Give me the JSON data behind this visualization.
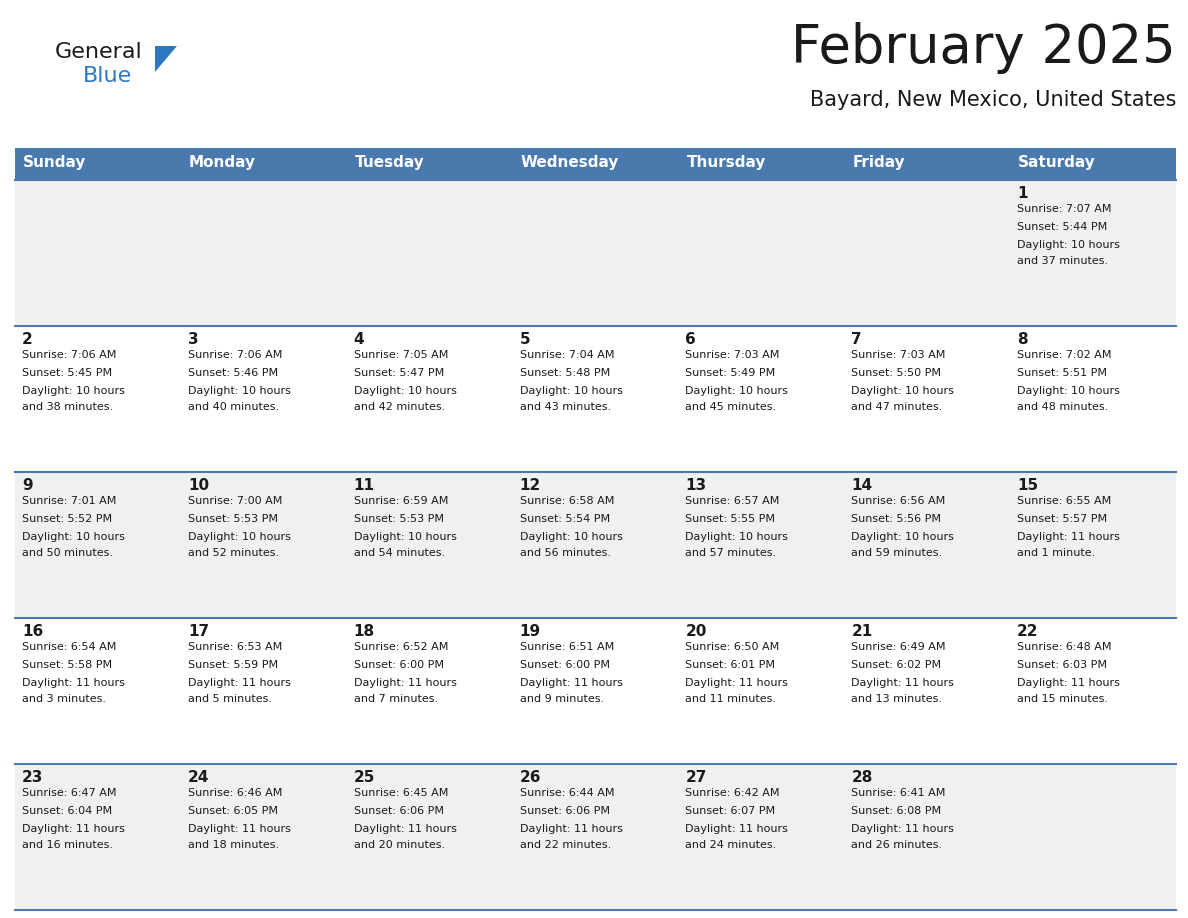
{
  "title": "February 2025",
  "subtitle": "Bayard, New Mexico, United States",
  "header_bg": "#4a7aad",
  "header_text_color": "#FFFFFF",
  "day_names": [
    "Sunday",
    "Monday",
    "Tuesday",
    "Wednesday",
    "Thursday",
    "Friday",
    "Saturday"
  ],
  "row_bg_odd": "#F0F0F0",
  "row_bg_even": "#FFFFFF",
  "cell_border_color": "#4a7aad",
  "title_color": "#1a1a1a",
  "subtitle_color": "#1a1a1a",
  "day_num_color": "#1a1a1a",
  "info_color": "#1a1a1a",
  "logo_general_color": "#1a1a1a",
  "logo_blue_color": "#2E78C0",
  "calendar_data": [
    [
      null,
      null,
      null,
      null,
      null,
      null,
      {
        "day": 1,
        "sunrise": "7:07 AM",
        "sunset": "5:44 PM",
        "daylight_line1": "Daylight: 10 hours",
        "daylight_line2": "and 37 minutes."
      }
    ],
    [
      {
        "day": 2,
        "sunrise": "7:06 AM",
        "sunset": "5:45 PM",
        "daylight_line1": "Daylight: 10 hours",
        "daylight_line2": "and 38 minutes."
      },
      {
        "day": 3,
        "sunrise": "7:06 AM",
        "sunset": "5:46 PM",
        "daylight_line1": "Daylight: 10 hours",
        "daylight_line2": "and 40 minutes."
      },
      {
        "day": 4,
        "sunrise": "7:05 AM",
        "sunset": "5:47 PM",
        "daylight_line1": "Daylight: 10 hours",
        "daylight_line2": "and 42 minutes."
      },
      {
        "day": 5,
        "sunrise": "7:04 AM",
        "sunset": "5:48 PM",
        "daylight_line1": "Daylight: 10 hours",
        "daylight_line2": "and 43 minutes."
      },
      {
        "day": 6,
        "sunrise": "7:03 AM",
        "sunset": "5:49 PM",
        "daylight_line1": "Daylight: 10 hours",
        "daylight_line2": "and 45 minutes."
      },
      {
        "day": 7,
        "sunrise": "7:03 AM",
        "sunset": "5:50 PM",
        "daylight_line1": "Daylight: 10 hours",
        "daylight_line2": "and 47 minutes."
      },
      {
        "day": 8,
        "sunrise": "7:02 AM",
        "sunset": "5:51 PM",
        "daylight_line1": "Daylight: 10 hours",
        "daylight_line2": "and 48 minutes."
      }
    ],
    [
      {
        "day": 9,
        "sunrise": "7:01 AM",
        "sunset": "5:52 PM",
        "daylight_line1": "Daylight: 10 hours",
        "daylight_line2": "and 50 minutes."
      },
      {
        "day": 10,
        "sunrise": "7:00 AM",
        "sunset": "5:53 PM",
        "daylight_line1": "Daylight: 10 hours",
        "daylight_line2": "and 52 minutes."
      },
      {
        "day": 11,
        "sunrise": "6:59 AM",
        "sunset": "5:53 PM",
        "daylight_line1": "Daylight: 10 hours",
        "daylight_line2": "and 54 minutes."
      },
      {
        "day": 12,
        "sunrise": "6:58 AM",
        "sunset": "5:54 PM",
        "daylight_line1": "Daylight: 10 hours",
        "daylight_line2": "and 56 minutes."
      },
      {
        "day": 13,
        "sunrise": "6:57 AM",
        "sunset": "5:55 PM",
        "daylight_line1": "Daylight: 10 hours",
        "daylight_line2": "and 57 minutes."
      },
      {
        "day": 14,
        "sunrise": "6:56 AM",
        "sunset": "5:56 PM",
        "daylight_line1": "Daylight: 10 hours",
        "daylight_line2": "and 59 minutes."
      },
      {
        "day": 15,
        "sunrise": "6:55 AM",
        "sunset": "5:57 PM",
        "daylight_line1": "Daylight: 11 hours",
        "daylight_line2": "and 1 minute."
      }
    ],
    [
      {
        "day": 16,
        "sunrise": "6:54 AM",
        "sunset": "5:58 PM",
        "daylight_line1": "Daylight: 11 hours",
        "daylight_line2": "and 3 minutes."
      },
      {
        "day": 17,
        "sunrise": "6:53 AM",
        "sunset": "5:59 PM",
        "daylight_line1": "Daylight: 11 hours",
        "daylight_line2": "and 5 minutes."
      },
      {
        "day": 18,
        "sunrise": "6:52 AM",
        "sunset": "6:00 PM",
        "daylight_line1": "Daylight: 11 hours",
        "daylight_line2": "and 7 minutes."
      },
      {
        "day": 19,
        "sunrise": "6:51 AM",
        "sunset": "6:00 PM",
        "daylight_line1": "Daylight: 11 hours",
        "daylight_line2": "and 9 minutes."
      },
      {
        "day": 20,
        "sunrise": "6:50 AM",
        "sunset": "6:01 PM",
        "daylight_line1": "Daylight: 11 hours",
        "daylight_line2": "and 11 minutes."
      },
      {
        "day": 21,
        "sunrise": "6:49 AM",
        "sunset": "6:02 PM",
        "daylight_line1": "Daylight: 11 hours",
        "daylight_line2": "and 13 minutes."
      },
      {
        "day": 22,
        "sunrise": "6:48 AM",
        "sunset": "6:03 PM",
        "daylight_line1": "Daylight: 11 hours",
        "daylight_line2": "and 15 minutes."
      }
    ],
    [
      {
        "day": 23,
        "sunrise": "6:47 AM",
        "sunset": "6:04 PM",
        "daylight_line1": "Daylight: 11 hours",
        "daylight_line2": "and 16 minutes."
      },
      {
        "day": 24,
        "sunrise": "6:46 AM",
        "sunset": "6:05 PM",
        "daylight_line1": "Daylight: 11 hours",
        "daylight_line2": "and 18 minutes."
      },
      {
        "day": 25,
        "sunrise": "6:45 AM",
        "sunset": "6:06 PM",
        "daylight_line1": "Daylight: 11 hours",
        "daylight_line2": "and 20 minutes."
      },
      {
        "day": 26,
        "sunrise": "6:44 AM",
        "sunset": "6:06 PM",
        "daylight_line1": "Daylight: 11 hours",
        "daylight_line2": "and 22 minutes."
      },
      {
        "day": 27,
        "sunrise": "6:42 AM",
        "sunset": "6:07 PM",
        "daylight_line1": "Daylight: 11 hours",
        "daylight_line2": "and 24 minutes."
      },
      {
        "day": 28,
        "sunrise": "6:41 AM",
        "sunset": "6:08 PM",
        "daylight_line1": "Daylight: 11 hours",
        "daylight_line2": "and 26 minutes."
      },
      null
    ]
  ]
}
